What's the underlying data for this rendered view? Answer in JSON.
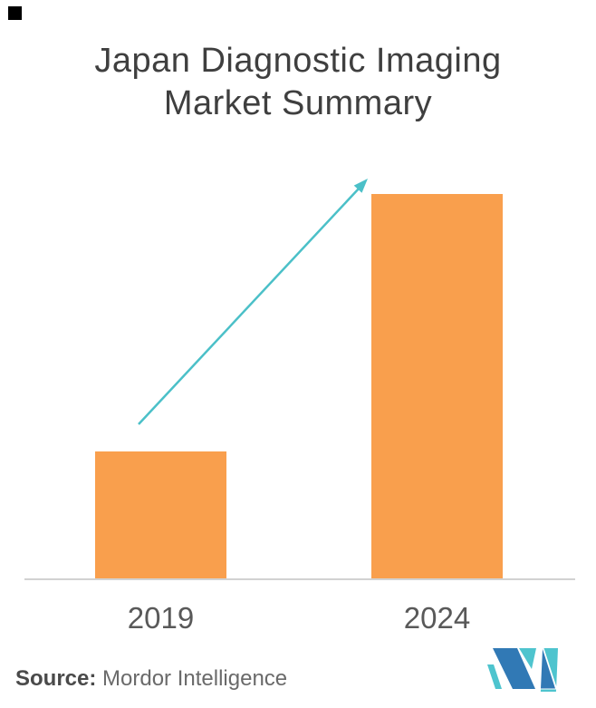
{
  "title": {
    "line1": "Japan Diagnostic Imaging",
    "line2": "Market Summary"
  },
  "chart_data": {
    "type": "bar",
    "title": "Japan Diagnostic Imaging Market Summary",
    "categories": [
      "2019",
      "2024"
    ],
    "values": [
      0.33,
      1.0
    ],
    "ylim": [
      0,
      1.08
    ],
    "xlabel": "",
    "ylabel": "",
    "grid": false,
    "y_axis_shown": false,
    "legend": "none",
    "bar_color": "#F99F4D",
    "annotations": [
      {
        "type": "arrow",
        "from": "top of 2019 bar",
        "to": "top of 2024 bar",
        "color": "#4BC0C8",
        "meaning": "growth from 2019 to 2024"
      }
    ]
  },
  "source": {
    "label": "Source:",
    "name": " Mordor Intelligence"
  },
  "icons": {
    "logo": "mordor-intelligence-mi-logo"
  },
  "colors": {
    "bar_orange": "#F99F4D",
    "arrow_teal": "#4BC0C8",
    "axis_gray": "#D2D2D2",
    "title_gray": "#3F3F3F",
    "label_gray": "#595959",
    "source_label_gray": "#4A4A4A",
    "source_gray": "#6A6A6A",
    "logo_blue": "#3179B5",
    "logo_teal": "#4EC4CE",
    "background": "#FFFFFF"
  }
}
